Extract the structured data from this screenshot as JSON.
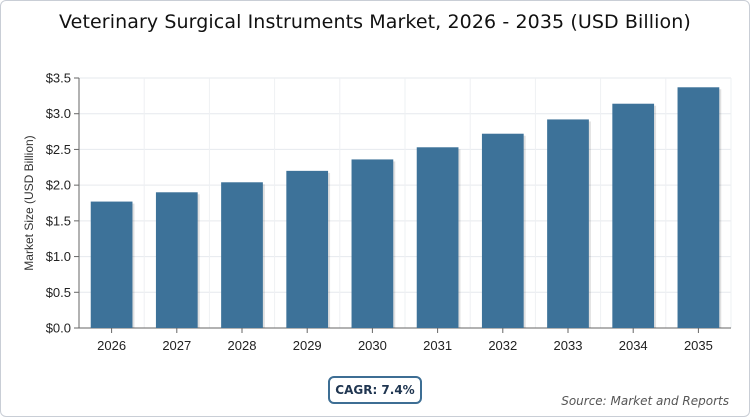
{
  "chart_data": {
    "type": "bar",
    "title": "Veterinary Surgical Instruments Market, 2026 - 2035 (USD Billion)",
    "ylabel": "Market Size (USD Billion)",
    "xlabel": "",
    "categories": [
      "2026",
      "2027",
      "2028",
      "2029",
      "2030",
      "2031",
      "2032",
      "2033",
      "2034",
      "2035"
    ],
    "values": [
      1.77,
      1.9,
      2.04,
      2.2,
      2.36,
      2.53,
      2.72,
      2.92,
      3.14,
      3.37
    ],
    "ylim": [
      0,
      3.5
    ],
    "yticks": [
      "$0.0",
      "$0.5",
      "$1.0",
      "$1.5",
      "$2.0",
      "$2.5",
      "$3.0",
      "$3.5"
    ],
    "ytick_values": [
      0,
      0.5,
      1.0,
      1.5,
      2.0,
      2.5,
      3.0,
      3.5
    ],
    "grid": true,
    "bar_color": "#3d7299"
  },
  "footer": {
    "cagr": "CAGR: 7.4%",
    "source": "Source: Market and Reports"
  }
}
